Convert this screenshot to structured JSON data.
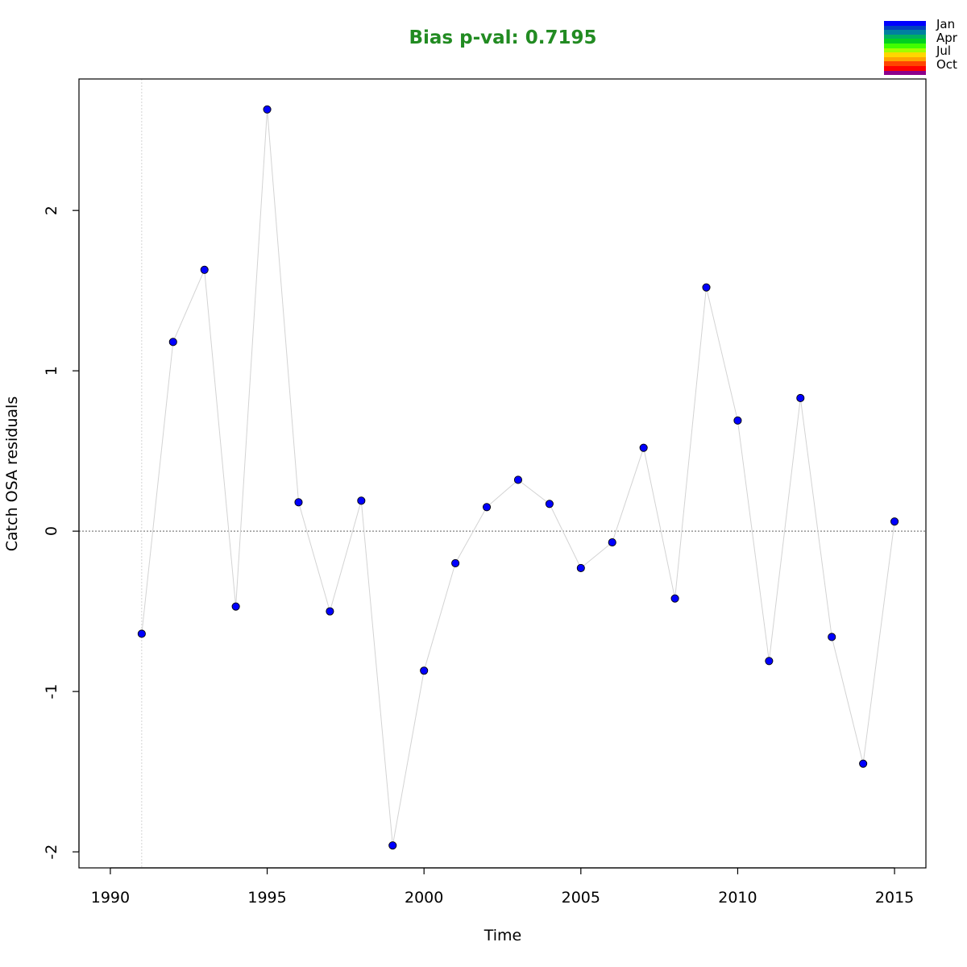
{
  "chart_data": {
    "type": "scatter",
    "title": "Bias p-val: 0.7195",
    "title_color": "#228B22",
    "xlabel": "Time",
    "ylabel": "Catch OSA residuals",
    "xlim": [
      1989,
      2016
    ],
    "ylim": [
      -2.1,
      2.82
    ],
    "x_ticks": [
      1990,
      1995,
      2000,
      2005,
      2010,
      2015
    ],
    "y_ticks": [
      -2,
      -1,
      0,
      1,
      2
    ],
    "reference_lines": {
      "horizontal_y": 0,
      "vertical_x": 1991
    },
    "series": [
      {
        "x": [
          1991,
          1992,
          1993,
          1994,
          1995,
          1996,
          1997,
          1998,
          1999,
          2000,
          2001,
          2002,
          2003,
          2004,
          2005,
          2006,
          2007,
          2008,
          2009,
          2010,
          2011,
          2012,
          2013,
          2014,
          2015
        ],
        "y": [
          -0.64,
          1.18,
          1.63,
          -0.47,
          2.63,
          0.18,
          -0.5,
          0.19,
          -1.96,
          -0.87,
          -0.2,
          0.15,
          0.32,
          0.17,
          -0.23,
          -0.07,
          0.52,
          -0.42,
          1.52,
          0.69,
          -0.81,
          0.83,
          -0.66,
          -1.45,
          0.06
        ],
        "marker_color": "#0000FF",
        "line_color": "#D3D3D3"
      }
    ],
    "legend": {
      "placement": "top-right",
      "labels": [
        "Jan",
        "Apr",
        "Jul",
        "Oct"
      ],
      "colors": [
        "#0000FF",
        "#0040C0",
        "#0080A0",
        "#00B060",
        "#00D020",
        "#40FF00",
        "#A0FF00",
        "#FFD700",
        "#FFA500",
        "#FF4500",
        "#FF0000",
        "#8B008B"
      ]
    },
    "grid": false
  }
}
